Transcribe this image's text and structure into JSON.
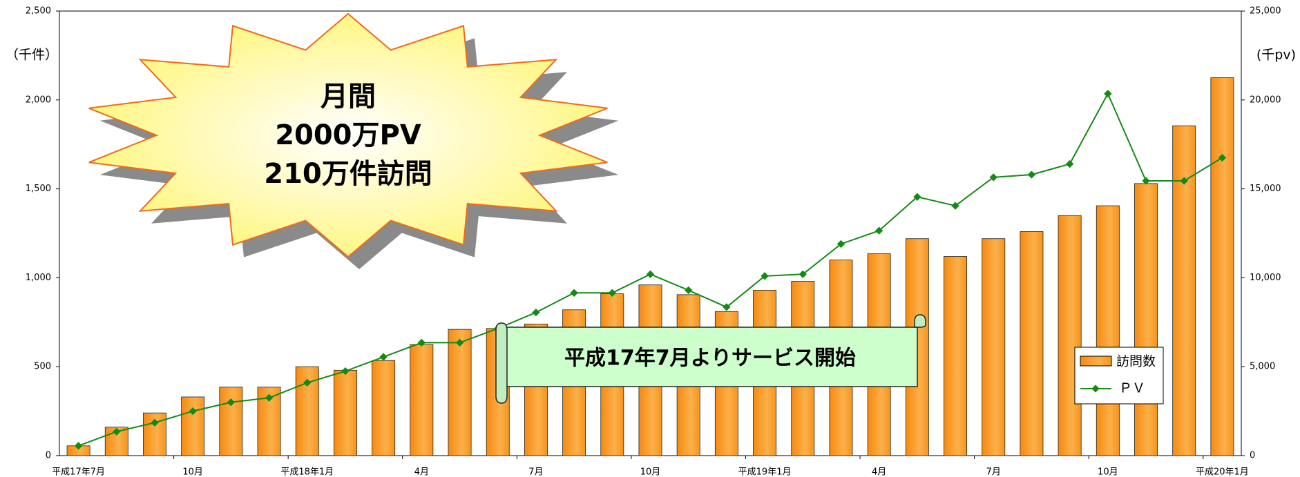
{
  "chart_data": {
    "type": "bar",
    "categories": [
      "平成17年7月",
      null,
      null,
      "10月",
      null,
      null,
      "平成18年1月",
      null,
      null,
      "4月",
      null,
      null,
      "7月",
      null,
      null,
      "10月",
      null,
      null,
      "平成19年1月",
      null,
      null,
      "4月",
      null,
      null,
      "7月",
      null,
      null,
      "10月",
      null,
      null,
      "平成20年1月"
    ],
    "series": [
      {
        "name": "訪問数",
        "type": "bar",
        "color": "#f7941d",
        "values": [
          55,
          160,
          240,
          330,
          385,
          385,
          500,
          480,
          535,
          625,
          710,
          715,
          740,
          820,
          910,
          960,
          905,
          810,
          930,
          980,
          1100,
          1135,
          1220,
          1120,
          1220,
          1260,
          1350,
          1405,
          1530,
          1855,
          2125
        ]
      },
      {
        "name": "ＰＶ",
        "type": "line",
        "axis": "y2",
        "color": "#138a13",
        "values": [
          550,
          1350,
          1850,
          2500,
          3000,
          3250,
          4100,
          4750,
          5550,
          6350,
          6350,
          7150,
          8050,
          9150,
          9150,
          10200,
          9300,
          8350,
          10100,
          10200,
          11900,
          12650,
          14550,
          14050,
          15650,
          15800,
          16400,
          20350,
          15450,
          15450,
          16750
        ]
      }
    ],
    "y_label": "（千件）",
    "y2_label": "(千pv)",
    "ylim": [
      0,
      2500
    ],
    "yticks": [
      0,
      500,
      {
        "value": 1000,
        "label": "1,000"
      },
      {
        "value": 1500,
        "label": "1,500"
      },
      {
        "value": 2000,
        "label": "2,000"
      },
      {
        "value": 2500,
        "label": "2,500"
      }
    ],
    "y2lim": [
      0,
      25000
    ],
    "y2ticks": [
      0,
      {
        "value": 5000,
        "label": "5,000"
      },
      {
        "value": 10000,
        "label": "10,000"
      },
      {
        "value": 15000,
        "label": "15,000"
      },
      {
        "value": 20000,
        "label": "20,000"
      },
      {
        "value": 25000,
        "label": "25,000"
      }
    ],
    "legend": "lower right",
    "burst_text": [
      "月間",
      "2000万PV",
      "210万件訪問"
    ],
    "banner_text": "平成17年7月よりサービス開始"
  }
}
